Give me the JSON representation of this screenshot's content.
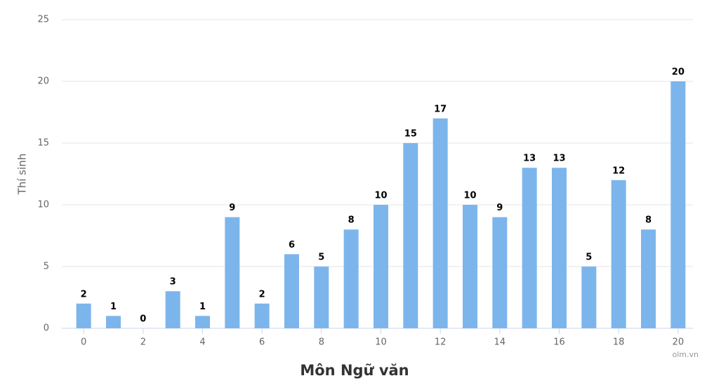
{
  "chart_data": {
    "type": "bar",
    "x_label": "Môn Ngữ văn",
    "y_label": "Thí sinh",
    "credit": "olm.vn",
    "x": [
      0,
      1,
      2,
      3,
      4,
      5,
      6,
      7,
      8,
      9,
      10,
      11,
      12,
      13,
      14,
      15,
      16,
      17,
      18,
      19,
      20
    ],
    "values": [
      2,
      1,
      0,
      3,
      1,
      9,
      2,
      6,
      5,
      8,
      10,
      15,
      17,
      10,
      9,
      13,
      13,
      5,
      12,
      8,
      20
    ],
    "color": "#7cb5ec",
    "xlim": [
      -0.5,
      20.5
    ],
    "xticks": [
      0,
      2,
      4,
      6,
      8,
      10,
      12,
      14,
      16,
      18,
      20
    ],
    "ylim": [
      0,
      25
    ],
    "yticks": [
      0,
      5,
      10,
      15,
      20,
      25
    ],
    "grid": true
  }
}
